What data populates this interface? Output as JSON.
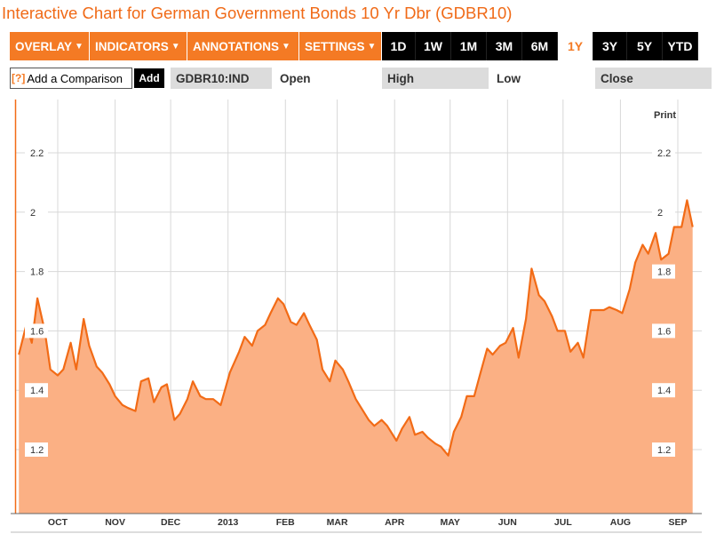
{
  "title": "Interactive Chart for German Government Bonds 10 Yr Dbr (GDBR10)",
  "menus": [
    {
      "label": "OVERLAY",
      "caret": "▼"
    },
    {
      "label": "INDICATORS",
      "caret": "▼"
    },
    {
      "label": "ANNOTATIONS",
      "caret": "▼"
    },
    {
      "label": "SETTINGS",
      "caret": "▼"
    }
  ],
  "ranges": [
    "1D",
    "1W",
    "1M",
    "3M",
    "6M",
    "1Y",
    "3Y",
    "5Y",
    "YTD"
  ],
  "active_range": "1Y",
  "comparison": {
    "icon": "[?]",
    "placeholder": "Add a Comparison",
    "add_label": "Add"
  },
  "quote_bar": {
    "symbol": "GDBR10:IND",
    "open_label": "Open",
    "high_label": "High",
    "low_label": "Low",
    "close_label": "Close"
  },
  "print_label": "Print",
  "colors": {
    "accent": "#f47a24",
    "line": "#f26b16",
    "fill": "#fbb084"
  },
  "chart_data": {
    "type": "area",
    "x_tick_labels": [
      "OCT",
      "NOV",
      "DEC",
      "2013",
      "FEB",
      "MAR",
      "APR",
      "MAY",
      "JUN",
      "JUL",
      "AUG",
      "SEP"
    ],
    "y_tick_labels": [
      "1.2",
      "1.4",
      "1.6",
      "1.8",
      "2",
      "2.2"
    ],
    "ylim": [
      1.0,
      2.4
    ],
    "grid": true,
    "x": [
      "2012-09-10",
      "2012-09-14",
      "2012-09-17",
      "2012-09-20",
      "2012-09-24",
      "2012-09-27",
      "2012-10-01",
      "2012-10-04",
      "2012-10-08",
      "2012-10-11",
      "2012-10-15",
      "2012-10-18",
      "2012-10-22",
      "2012-10-25",
      "2012-10-29",
      "2012-11-01",
      "2012-11-05",
      "2012-11-08",
      "2012-11-12",
      "2012-11-15",
      "2012-11-19",
      "2012-11-22",
      "2012-11-26",
      "2012-11-29",
      "2012-12-03",
      "2012-12-06",
      "2012-12-10",
      "2012-12-13",
      "2012-12-17",
      "2012-12-20",
      "2012-12-24",
      "2012-12-28",
      "2013-01-02",
      "2013-01-07",
      "2013-01-10",
      "2013-01-14",
      "2013-01-17",
      "2013-01-21",
      "2013-01-24",
      "2013-01-28",
      "2013-01-31",
      "2013-02-04",
      "2013-02-07",
      "2013-02-11",
      "2013-02-14",
      "2013-02-18",
      "2013-02-21",
      "2013-02-25",
      "2013-02-28",
      "2013-03-04",
      "2013-03-07",
      "2013-03-11",
      "2013-03-14",
      "2013-03-18",
      "2013-03-21",
      "2013-03-25",
      "2013-03-28",
      "2013-04-02",
      "2013-04-05",
      "2013-04-09",
      "2013-04-12",
      "2013-04-16",
      "2013-04-19",
      "2013-04-23",
      "2013-04-26",
      "2013-04-30",
      "2013-05-03",
      "2013-05-07",
      "2013-05-10",
      "2013-05-14",
      "2013-05-17",
      "2013-05-21",
      "2013-05-24",
      "2013-05-28",
      "2013-05-31",
      "2013-06-04",
      "2013-06-07",
      "2013-06-11",
      "2013-06-14",
      "2013-06-18",
      "2013-06-21",
      "2013-06-25",
      "2013-06-28",
      "2013-07-02",
      "2013-07-05",
      "2013-07-09",
      "2013-07-12",
      "2013-07-16",
      "2013-07-19",
      "2013-07-23",
      "2013-07-26",
      "2013-07-30",
      "2013-08-02",
      "2013-08-06",
      "2013-08-09",
      "2013-08-13",
      "2013-08-16",
      "2013-08-20",
      "2013-08-23",
      "2013-08-27",
      "2013-08-30",
      "2013-09-03",
      "2013-09-06",
      "2013-09-09"
    ],
    "values": [
      1.52,
      1.62,
      1.56,
      1.71,
      1.6,
      1.47,
      1.45,
      1.47,
      1.56,
      1.47,
      1.64,
      1.55,
      1.48,
      1.46,
      1.42,
      1.38,
      1.35,
      1.34,
      1.33,
      1.43,
      1.44,
      1.36,
      1.41,
      1.42,
      1.3,
      1.32,
      1.37,
      1.43,
      1.38,
      1.37,
      1.37,
      1.35,
      1.46,
      1.53,
      1.58,
      1.55,
      1.6,
      1.62,
      1.66,
      1.71,
      1.69,
      1.63,
      1.62,
      1.66,
      1.62,
      1.57,
      1.47,
      1.43,
      1.5,
      1.47,
      1.43,
      1.37,
      1.34,
      1.3,
      1.28,
      1.3,
      1.28,
      1.23,
      1.27,
      1.31,
      1.25,
      1.26,
      1.24,
      1.22,
      1.21,
      1.18,
      1.26,
      1.31,
      1.38,
      1.38,
      1.45,
      1.54,
      1.52,
      1.55,
      1.56,
      1.61,
      1.51,
      1.64,
      1.81,
      1.72,
      1.7,
      1.65,
      1.6,
      1.6,
      1.53,
      1.56,
      1.51,
      1.67,
      1.67,
      1.67,
      1.68,
      1.67,
      1.66,
      1.74,
      1.83,
      1.89,
      1.86,
      1.93,
      1.84,
      1.86,
      1.95,
      1.95,
      2.04,
      1.95
    ]
  }
}
